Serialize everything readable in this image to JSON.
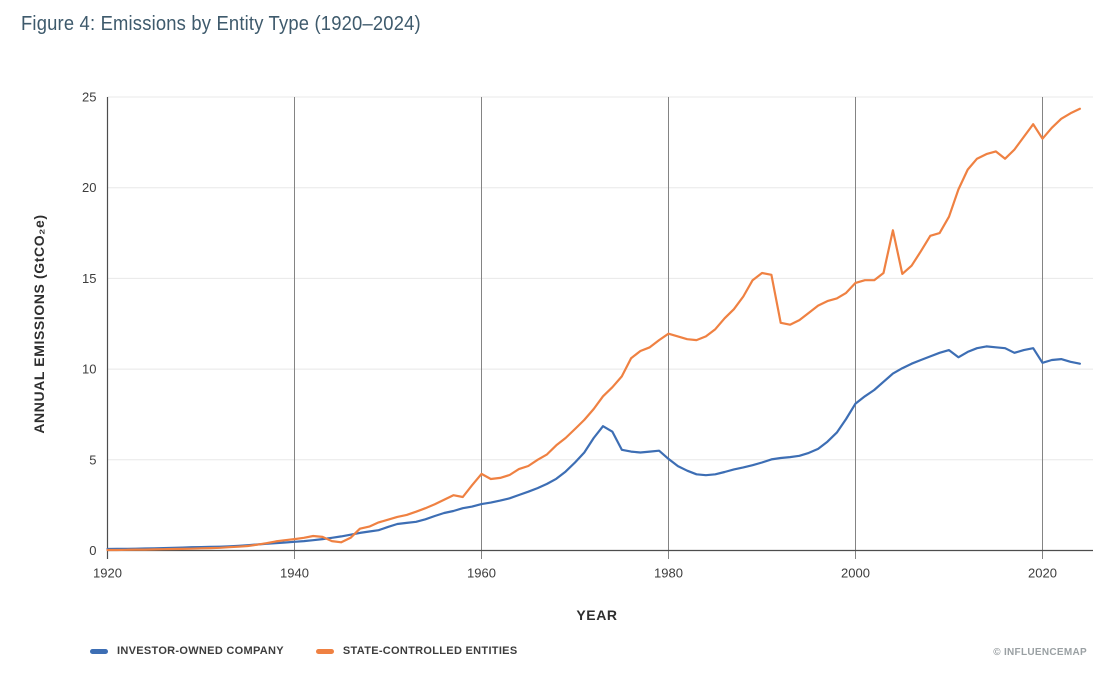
{
  "figure": {
    "title": "Figure 4: Emissions by Entity Type (1920–2024)"
  },
  "watermark": "© INFLUENCEMAP",
  "legend": [
    {
      "label": "INVESTOR-OWNED COMPANY",
      "color": "#3D6EB4"
    },
    {
      "label": "STATE-CONTROLLED ENTITIES",
      "color": "#EF8142"
    }
  ],
  "chart_data": {
    "type": "line",
    "title": "Figure 4: Emissions by Entity Type (1920–2024)",
    "xlabel": "YEAR",
    "ylabel": "ANNUAL EMISSIONS (GtCO₂e)",
    "xlim": [
      1920,
      2024
    ],
    "ylim": [
      0,
      25
    ],
    "x_ticks": [
      1920,
      1940,
      1960,
      1980,
      2000,
      2020
    ],
    "y_ticks": [
      0,
      5,
      10,
      15,
      20,
      25
    ],
    "grid": {
      "horizontal": "light",
      "vertical": "dark"
    },
    "legend_position": "bottom-left",
    "colors": {
      "axis": "#4d4d4d",
      "vertical_grid": "#848484",
      "horizontal_grid": "#e8e8e8",
      "tick_text": "#3d3d3d"
    },
    "x": [
      1920,
      1921,
      1922,
      1923,
      1924,
      1925,
      1926,
      1927,
      1928,
      1929,
      1930,
      1931,
      1932,
      1933,
      1934,
      1935,
      1936,
      1937,
      1938,
      1939,
      1940,
      1941,
      1942,
      1943,
      1944,
      1945,
      1946,
      1947,
      1948,
      1949,
      1950,
      1951,
      1952,
      1953,
      1954,
      1955,
      1956,
      1957,
      1958,
      1959,
      1960,
      1961,
      1962,
      1963,
      1964,
      1965,
      1966,
      1967,
      1968,
      1969,
      1970,
      1971,
      1972,
      1973,
      1974,
      1975,
      1976,
      1977,
      1978,
      1979,
      1980,
      1981,
      1982,
      1983,
      1984,
      1985,
      1986,
      1987,
      1988,
      1989,
      1990,
      1991,
      1992,
      1993,
      1994,
      1995,
      1996,
      1997,
      1998,
      1999,
      2000,
      2001,
      2002,
      2003,
      2004,
      2005,
      2006,
      2007,
      2008,
      2009,
      2010,
      2011,
      2012,
      2013,
      2014,
      2015,
      2016,
      2017,
      2018,
      2019,
      2020,
      2021,
      2022,
      2023,
      2024
    ],
    "series": [
      {
        "name": "INVESTOR-OWNED COMPANY",
        "color": "#3D6EB4",
        "values": [
          0.08,
          0.09,
          0.09,
          0.1,
          0.11,
          0.12,
          0.13,
          0.15,
          0.16,
          0.18,
          0.19,
          0.2,
          0.21,
          0.23,
          0.26,
          0.29,
          0.33,
          0.37,
          0.4,
          0.44,
          0.48,
          0.52,
          0.57,
          0.63,
          0.7,
          0.78,
          0.87,
          0.97,
          1.05,
          1.12,
          1.3,
          1.46,
          1.52,
          1.58,
          1.72,
          1.9,
          2.07,
          2.18,
          2.33,
          2.42,
          2.56,
          2.64,
          2.75,
          2.88,
          3.06,
          3.24,
          3.44,
          3.67,
          3.95,
          4.35,
          4.85,
          5.4,
          6.2,
          6.85,
          6.55,
          5.55,
          5.45,
          5.4,
          5.45,
          5.5,
          5.05,
          4.65,
          4.4,
          4.2,
          4.15,
          4.2,
          4.33,
          4.47,
          4.58,
          4.7,
          4.85,
          5.02,
          5.1,
          5.15,
          5.22,
          5.38,
          5.6,
          6.0,
          6.5,
          7.25,
          8.1,
          8.5,
          8.85,
          9.3,
          9.75,
          10.05,
          10.3,
          10.5,
          10.7,
          10.9,
          11.05,
          10.65,
          10.95,
          11.15,
          11.25,
          11.2,
          11.15,
          10.9,
          11.05,
          11.15,
          10.35,
          10.5,
          10.55,
          10.4,
          10.3
        ]
      },
      {
        "name": "STATE-CONTROLLED ENTITIES",
        "color": "#EF8142",
        "values": [
          0.03,
          0.03,
          0.04,
          0.05,
          0.05,
          0.06,
          0.07,
          0.08,
          0.09,
          0.1,
          0.12,
          0.13,
          0.15,
          0.18,
          0.21,
          0.25,
          0.32,
          0.4,
          0.5,
          0.57,
          0.63,
          0.7,
          0.8,
          0.75,
          0.52,
          0.45,
          0.7,
          1.2,
          1.32,
          1.55,
          1.7,
          1.85,
          1.96,
          2.14,
          2.33,
          2.55,
          2.8,
          3.05,
          2.95,
          3.6,
          4.22,
          3.94,
          4.0,
          4.16,
          4.49,
          4.66,
          5.0,
          5.3,
          5.8,
          6.2,
          6.7,
          7.2,
          7.8,
          8.5,
          9.0,
          9.6,
          10.6,
          11.0,
          11.2,
          11.6,
          11.95,
          11.8,
          11.65,
          11.6,
          11.8,
          12.2,
          12.8,
          13.3,
          14.0,
          14.9,
          15.3,
          15.2,
          12.55,
          12.45,
          12.7,
          13.1,
          13.5,
          13.75,
          13.9,
          14.2,
          14.75,
          14.9,
          14.9,
          15.3,
          17.65,
          15.25,
          15.7,
          16.5,
          17.35,
          17.5,
          18.4,
          19.9,
          21.0,
          21.6,
          21.85,
          22.0,
          21.6,
          22.1,
          22.8,
          23.5,
          22.7,
          23.3,
          23.8,
          24.1,
          24.35
        ]
      }
    ]
  }
}
